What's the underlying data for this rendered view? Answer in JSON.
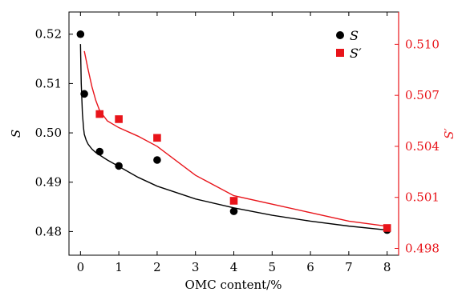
{
  "chart_data": {
    "type": "scatter",
    "xlabel": "OMC content/%",
    "ylabel_left": "S",
    "ylabel_right": "S′",
    "xlim": [
      -0.3,
      8.3
    ],
    "xticks": [
      0,
      1,
      2,
      3,
      4,
      5,
      6,
      7,
      8
    ],
    "xtick_labels": [
      "0",
      "1",
      "2",
      "3",
      "4",
      "5",
      "6",
      "7",
      "8"
    ],
    "ylim_left": [
      0.4752,
      0.5245
    ],
    "yticks_left": [
      0.48,
      0.49,
      0.5,
      0.51,
      0.52
    ],
    "ytick_labels_left": [
      "0.48",
      "0.49",
      "0.50",
      "0.51",
      "0.52"
    ],
    "ylim_right": [
      0.4976,
      0.5119
    ],
    "yticks_right": [
      0.498,
      0.501,
      0.504,
      0.507,
      0.51
    ],
    "ytick_labels_right": [
      "0.498",
      "0.501",
      "0.504",
      "0.507",
      "0.510"
    ],
    "grid": false,
    "legend_position": "top-right",
    "series": [
      {
        "name": "S",
        "axis": "left",
        "marker": "circle",
        "color": "#000000",
        "x": [
          0,
          0.1,
          0.5,
          1,
          2,
          4,
          8
        ],
        "y": [
          0.52,
          0.5079,
          0.4962,
          0.4933,
          0.4945,
          0.4841,
          0.4803
        ],
        "fit": {
          "x": [
            0,
            0.02,
            0.05,
            0.08,
            0.1,
            0.15,
            0.2,
            0.3,
            0.4,
            0.5,
            0.7,
            1.0,
            1.5,
            2.0,
            3.0,
            4.0,
            5.0,
            6.0,
            7.0,
            8.0
          ],
          "y": [
            0.518,
            0.51,
            0.504,
            0.501,
            0.4997,
            0.4985,
            0.4977,
            0.4967,
            0.496,
            0.4955,
            0.4945,
            0.4932,
            0.491,
            0.4892,
            0.4866,
            0.4848,
            0.4833,
            0.4821,
            0.4811,
            0.4803
          ]
        }
      },
      {
        "name": "S′",
        "axis": "right",
        "marker": "square",
        "color": "#e8141a",
        "x": [
          0.5,
          1,
          2,
          4,
          8
        ],
        "y": [
          0.5059,
          0.5056,
          0.5045,
          0.5008,
          0.4992
        ],
        "fit": {
          "x": [
            0.1,
            0.2,
            0.3,
            0.4,
            0.5,
            0.7,
            1.0,
            1.5,
            2.0,
            3.0,
            4.0,
            5.0,
            6.0,
            7.0,
            8.0
          ],
          "y": [
            0.5096,
            0.5085,
            0.5075,
            0.5067,
            0.5061,
            0.5055,
            0.5051,
            0.5046,
            0.504,
            0.5023,
            0.5011,
            0.5006,
            0.5001,
            0.4996,
            0.4993
          ]
        }
      }
    ]
  }
}
